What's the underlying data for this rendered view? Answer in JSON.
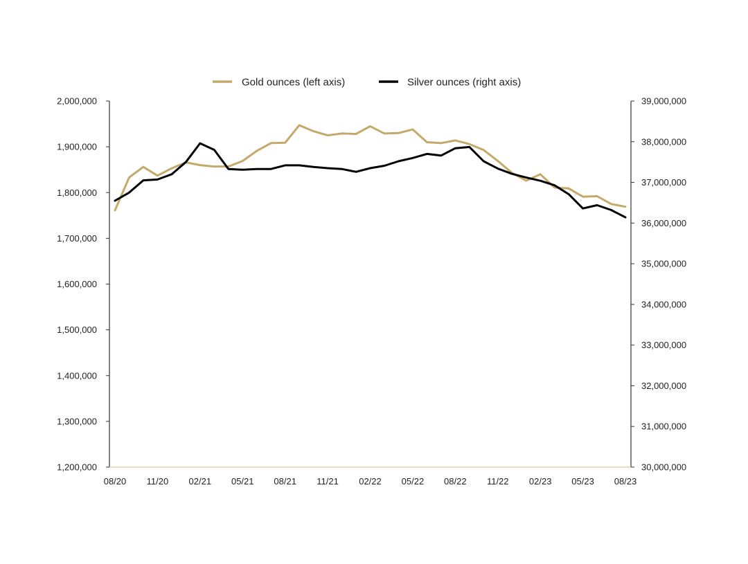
{
  "chart_data": {
    "type": "line",
    "title": "",
    "xlabel": "",
    "ylabel_left": "",
    "ylabel_right": "",
    "legend": {
      "position": "top-center",
      "entries": [
        {
          "name": "Gold ounces (left axis)",
          "color": "#C4A96B"
        },
        {
          "name": "Silver ounces (right axis)",
          "color": "#000000"
        }
      ]
    },
    "grid": false,
    "x_tick_labels": [
      "08/20",
      "11/20",
      "02/21",
      "05/21",
      "08/21",
      "11/21",
      "02/22",
      "05/22",
      "08/22",
      "11/22",
      "02/23",
      "05/23",
      "08/23"
    ],
    "x": [
      "08/20",
      "09/20",
      "10/20",
      "11/20",
      "12/20",
      "01/21",
      "02/21",
      "03/21",
      "04/21",
      "05/21",
      "06/21",
      "07/21",
      "08/21",
      "09/21",
      "10/21",
      "11/21",
      "12/21",
      "01/22",
      "02/22",
      "03/22",
      "04/22",
      "05/22",
      "06/22",
      "07/22",
      "08/22",
      "09/22",
      "10/22",
      "11/22",
      "12/22",
      "01/23",
      "02/23",
      "03/23",
      "04/23",
      "05/23",
      "06/23",
      "07/23",
      "08/23"
    ],
    "y_left": {
      "range": [
        1200000,
        2000000
      ],
      "tick_labels": [
        "1,200,000",
        "1,300,000",
        "1,400,000",
        "1,500,000",
        "1,600,000",
        "1,700,000",
        "1,800,000",
        "1,900,000",
        "2,000,000"
      ],
      "ticks": [
        1200000,
        1300000,
        1400000,
        1500000,
        1600000,
        1700000,
        1800000,
        1900000,
        2000000
      ]
    },
    "y_right": {
      "range": [
        30000000,
        39000000
      ],
      "tick_labels": [
        "30,000,000",
        "31,000,000",
        "32,000,000",
        "33,000,000",
        "34,000,000",
        "35,000,000",
        "36,000,000",
        "37,000,000",
        "38,000,000",
        "39,000,000"
      ],
      "ticks": [
        30000000,
        31000000,
        32000000,
        33000000,
        34000000,
        35000000,
        36000000,
        37000000,
        38000000,
        39000000
      ]
    },
    "series": [
      {
        "name": "Gold ounces (left axis)",
        "axis": "left",
        "color": "#C4A96B",
        "values": [
          1761000,
          1833000,
          1856000,
          1837000,
          1853000,
          1866000,
          1860000,
          1857000,
          1857000,
          1869000,
          1891000,
          1908000,
          1909000,
          1947000,
          1934000,
          1925000,
          1929000,
          1928000,
          1945000,
          1929000,
          1930000,
          1938000,
          1910000,
          1908000,
          1914000,
          1906000,
          1893000,
          1869000,
          1843000,
          1826000,
          1840000,
          1811000,
          1809000,
          1791000,
          1792000,
          1775000,
          1769000
        ]
      },
      {
        "name": "Silver ounces (right axis)",
        "axis": "right",
        "color": "#000000",
        "values": [
          36550000,
          36750000,
          37050000,
          37070000,
          37200000,
          37500000,
          37960000,
          37800000,
          37330000,
          37310000,
          37330000,
          37330000,
          37420000,
          37420000,
          37380000,
          37350000,
          37330000,
          37260000,
          37350000,
          37410000,
          37520000,
          37600000,
          37700000,
          37660000,
          37840000,
          37870000,
          37520000,
          37340000,
          37210000,
          37120000,
          37040000,
          36930000,
          36710000,
          36360000,
          36440000,
          36320000,
          36140000
        ]
      }
    ]
  }
}
